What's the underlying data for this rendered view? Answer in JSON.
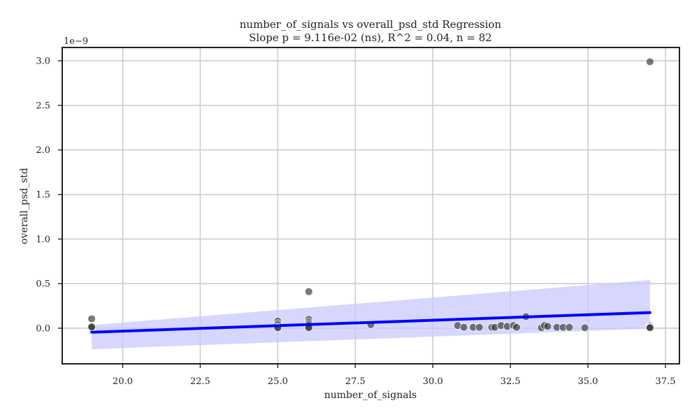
{
  "chart_data": {
    "type": "scatter",
    "title": "number_of_signals vs overall_psd_std Regression",
    "subtitle": "Slope p = 9.116e-02 (ns), R^2 = 0.04, n = 82",
    "xlabel": "number_of_signals",
    "ylabel": "overall_psd_std",
    "y_offset_label": "1e−9",
    "xlim": [
      18.05,
      37.95
    ],
    "ylim": [
      -0.4,
      3.15
    ],
    "xticks": [
      20.0,
      22.5,
      25.0,
      27.5,
      30.0,
      32.5,
      35.0,
      37.5
    ],
    "xtick_labels": [
      "20.0",
      "22.5",
      "25.0",
      "27.5",
      "30.0",
      "32.5",
      "35.0",
      "37.5"
    ],
    "yticks": [
      0.0,
      0.5,
      1.0,
      1.5,
      2.0,
      2.5,
      3.0
    ],
    "ytick_labels": [
      "0.0",
      "0.5",
      "1.0",
      "1.5",
      "2.0",
      "2.5",
      "3.0"
    ],
    "grid": true,
    "points": [
      {
        "x": 19,
        "y": 0.105
      },
      {
        "x": 19,
        "y": 0.01
      },
      {
        "x": 19,
        "y": 0.005
      },
      {
        "x": 19,
        "y": 0.015
      },
      {
        "x": 25,
        "y": 0.08
      },
      {
        "x": 25,
        "y": 0.05
      },
      {
        "x": 25,
        "y": 0.03
      },
      {
        "x": 25,
        "y": 0.01
      },
      {
        "x": 25,
        "y": 0.005
      },
      {
        "x": 26,
        "y": 0.41
      },
      {
        "x": 26,
        "y": 0.1
      },
      {
        "x": 26,
        "y": 0.07
      },
      {
        "x": 26,
        "y": 0.05
      },
      {
        "x": 26,
        "y": 0.03
      },
      {
        "x": 26,
        "y": 0.01
      },
      {
        "x": 26,
        "y": 0.005
      },
      {
        "x": 28,
        "y": 0.04
      },
      {
        "x": 30.8,
        "y": 0.03
      },
      {
        "x": 31,
        "y": 0.01
      },
      {
        "x": 31.3,
        "y": 0.01
      },
      {
        "x": 31.5,
        "y": 0.01
      },
      {
        "x": 31.9,
        "y": 0.01
      },
      {
        "x": 32,
        "y": 0.01
      },
      {
        "x": 32.2,
        "y": 0.03
      },
      {
        "x": 32.4,
        "y": 0.02
      },
      {
        "x": 32.6,
        "y": 0.03
      },
      {
        "x": 32.7,
        "y": 0.01
      },
      {
        "x": 33,
        "y": 0.13
      },
      {
        "x": 33.5,
        "y": 0.005
      },
      {
        "x": 33.6,
        "y": 0.03
      },
      {
        "x": 33.7,
        "y": 0.02
      },
      {
        "x": 34,
        "y": 0.01
      },
      {
        "x": 34.2,
        "y": 0.01
      },
      {
        "x": 34.4,
        "y": 0.01
      },
      {
        "x": 34.9,
        "y": 0.005
      },
      {
        "x": 37,
        "y": 2.99
      },
      {
        "x": 37,
        "y": 0.03
      },
      {
        "x": 37,
        "y": 0.02
      },
      {
        "x": 37,
        "y": 0.01
      },
      {
        "x": 37,
        "y": 0.005
      }
    ],
    "regression_line": {
      "x": [
        19,
        37
      ],
      "y": [
        -0.045,
        0.175
      ]
    },
    "confidence_band": {
      "x": [
        19,
        37
      ],
      "upper": [
        0.035,
        0.54
      ],
      "lower": [
        -0.235,
        -0.005
      ]
    },
    "colors": {
      "points": "#404040",
      "regression": "#0000ff",
      "band": "#c8c8ff"
    }
  }
}
